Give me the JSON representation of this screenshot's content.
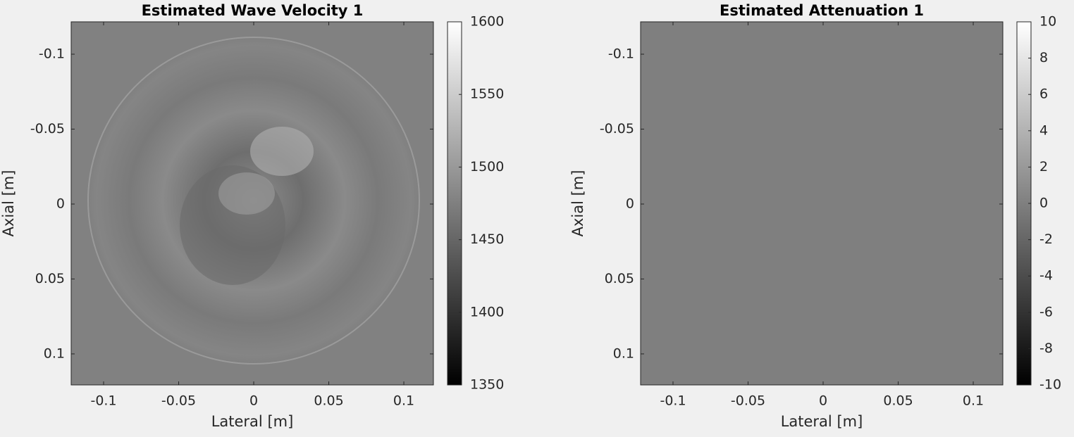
{
  "chart_data": [
    {
      "type": "image",
      "title": "Estimated Wave Velocity 1",
      "xlabel": "Lateral [m]",
      "ylabel": "Axial [m]",
      "xlim": [
        -0.1216,
        0.1197
      ],
      "ylim": [
        -0.1216,
        0.1207
      ],
      "y_reversed": true,
      "xticks": [
        -0.1,
        -0.05,
        0,
        0.05,
        0.1
      ],
      "yticks": [
        -0.1,
        -0.05,
        0,
        0.05,
        0.1
      ],
      "colormap": "gray",
      "clim": [
        1350,
        1600
      ],
      "cticks": [
        1350,
        1400,
        1450,
        1500,
        1550,
        1600
      ]
    },
    {
      "type": "image",
      "title": "Estimated Attenuation 1",
      "xlabel": "Lateral [m]",
      "ylabel": "Axial [m]",
      "xlim": [
        -0.1216,
        0.1197
      ],
      "ylim": [
        -0.1216,
        0.1207
      ],
      "y_reversed": true,
      "xticks": [
        -0.1,
        -0.05,
        0,
        0.05,
        0.1
      ],
      "yticks": [
        -0.1,
        -0.05,
        0,
        0.05,
        0.1
      ],
      "colormap": "gray",
      "clim": [
        -10,
        10
      ],
      "cticks": [
        -10,
        -8,
        -6,
        -4,
        -2,
        0,
        2,
        4,
        6,
        8,
        10
      ]
    }
  ]
}
